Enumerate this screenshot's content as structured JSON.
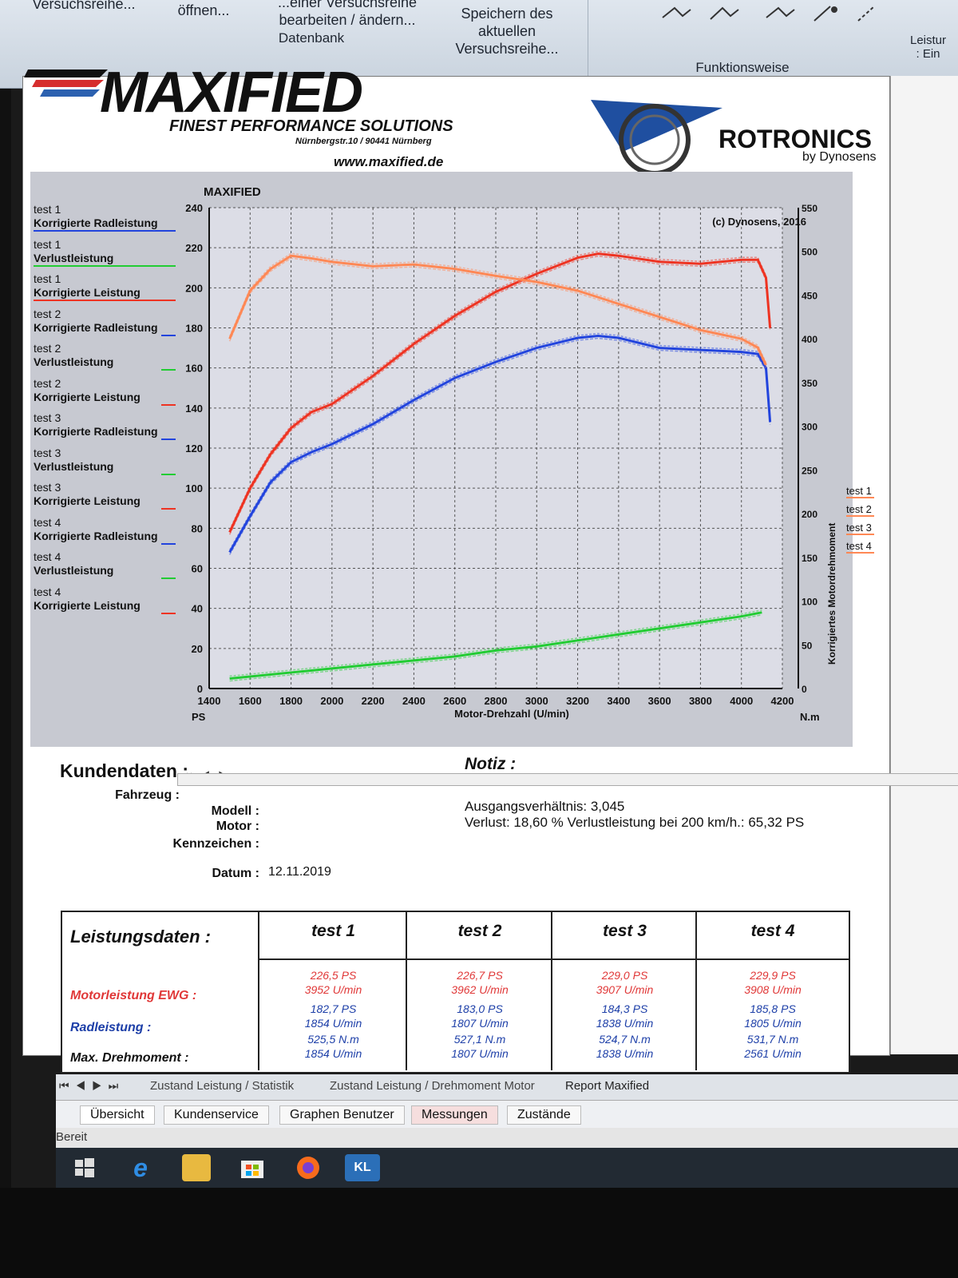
{
  "ribbon": {
    "btn_versuchsreihe": "Versuchsreihe...",
    "btn_oeffnen": "öffnen...",
    "btn_bearbeiten_top": "...einer Versuchsreihe",
    "btn_bearbeiten": "bearbeiten / ändern...",
    "btn_speichern_1": "Speichern des aktuellen",
    "btn_speichern_2": "Versuchsreihe...",
    "group_datenbank": "Datenbank",
    "group_funktionsweise": "Funktionsweise",
    "right_label_1": "Leistur",
    "right_label_2": ": Ein"
  },
  "header": {
    "logo_word": "MAXIFIED",
    "logo_sub": "FINEST PERFORMANCE SOLUTIONS",
    "logo_addr": "Nürnbergstr.10 / 90441 Nürnberg",
    "logo_url": "www.maxified.de",
    "partner_name": "ROTRONICS",
    "partner_by": "by Dynosens"
  },
  "chart_data": {
    "type": "line",
    "title": "MAXIFIED",
    "copyright": "(c) Dynosens, 2016",
    "xlabel": "Motor-Drehzahl (U/min)",
    "ylabel_left_unit": "PS",
    "ylabel_right": "Korrigiertes Motordrehmoment",
    "ylabel_right_unit": "N.m",
    "xlim": [
      1400,
      4200
    ],
    "ylim": [
      0,
      240
    ],
    "y2lim": [
      0,
      550
    ],
    "x_ticks": [
      1400,
      1600,
      1800,
      2000,
      2200,
      2400,
      2600,
      2800,
      3000,
      3200,
      3400,
      3600,
      3800,
      4000,
      4200
    ],
    "y_ticks": [
      0,
      20,
      40,
      60,
      80,
      100,
      120,
      140,
      160,
      180,
      200,
      220,
      240
    ],
    "y2_ticks": [
      0,
      50,
      100,
      150,
      200,
      250,
      300,
      350,
      400,
      450,
      500,
      550
    ],
    "grid": true,
    "series": [
      {
        "name": "Korrigierte Leistung",
        "color": "#ee3322",
        "x": [
          1500,
          1600,
          1700,
          1800,
          1900,
          2000,
          2200,
          2400,
          2600,
          2800,
          3000,
          3200,
          3300,
          3400,
          3600,
          3800,
          4000,
          4080,
          4120,
          4140
        ],
        "values": [
          78,
          100,
          117,
          130,
          138,
          142,
          156,
          172,
          186,
          198,
          207,
          215,
          217,
          216,
          213,
          212,
          214,
          214,
          205,
          180
        ]
      },
      {
        "name": "Korrigierte Radleistung",
        "color": "#2244dd",
        "x": [
          1500,
          1600,
          1700,
          1800,
          1900,
          2000,
          2200,
          2400,
          2600,
          2800,
          3000,
          3200,
          3300,
          3400,
          3600,
          3800,
          4000,
          4080,
          4120,
          4140
        ],
        "values": [
          68,
          86,
          103,
          113,
          118,
          122,
          132,
          144,
          155,
          163,
          170,
          175,
          176,
          175,
          170,
          169,
          168,
          167,
          160,
          133
        ]
      },
      {
        "name": "Korrigiertes Motordrehmoment",
        "color": "#ff8855",
        "axis": "right",
        "x": [
          1500,
          1600,
          1700,
          1800,
          1900,
          2000,
          2200,
          2400,
          2600,
          2800,
          3000,
          3200,
          3400,
          3600,
          3800,
          4000,
          4080,
          4120
        ],
        "values": [
          400,
          455,
          480,
          495,
          492,
          488,
          483,
          485,
          480,
          472,
          465,
          455,
          440,
          425,
          410,
          400,
          390,
          370
        ]
      },
      {
        "name": "Verlustleistung",
        "color": "#22cc33",
        "x": [
          1500,
          1600,
          1800,
          2000,
          2200,
          2400,
          2600,
          2800,
          3000,
          3200,
          3400,
          3600,
          3800,
          4000,
          4100
        ],
        "values": [
          5,
          6,
          8,
          10,
          12,
          14,
          16,
          19,
          21,
          24,
          27,
          30,
          33,
          36,
          38
        ]
      }
    ]
  },
  "legend_left": [
    {
      "t": "test 1",
      "n": "Korrigierte Radleistung",
      "color": "#2244dd",
      "style": "solid"
    },
    {
      "t": "test 1",
      "n": "Verlustleistung",
      "color": "#22cc33",
      "style": "solid"
    },
    {
      "t": "test 1",
      "n": "Korrigierte Leistung",
      "color": "#ee3322",
      "style": "solid"
    },
    {
      "t": "test 2",
      "n": "Korrigierte Radleistung",
      "color": "#2244dd",
      "style": "dashed"
    },
    {
      "t": "test 2",
      "n": "Verlustleistung",
      "color": "#22cc33",
      "style": "dashed"
    },
    {
      "t": "test 2",
      "n": "Korrigierte Leistung",
      "color": "#ee3322",
      "style": "dashed"
    },
    {
      "t": "test 3",
      "n": "Korrigierte Radleistung",
      "color": "#2244dd",
      "style": "dashed"
    },
    {
      "t": "test 3",
      "n": "Verlustleistung",
      "color": "#22cc33",
      "style": "dashed"
    },
    {
      "t": "test 3",
      "n": "Korrigierte Leistung",
      "color": "#ee3322",
      "style": "dashed"
    },
    {
      "t": "test 4",
      "n": "Korrigierte Radleistung",
      "color": "#2244dd",
      "style": "dashed"
    },
    {
      "t": "test 4",
      "n": "Verlustleistung",
      "color": "#22cc33",
      "style": "dashed"
    },
    {
      "t": "test 4",
      "n": "Korrigierte Leistung",
      "color": "#ee3322",
      "style": "dashed"
    }
  ],
  "legend_right": [
    {
      "t": "test 1",
      "color": "#ff8855"
    },
    {
      "t": "test 2",
      "color": "#ff8855"
    },
    {
      "t": "test 3",
      "color": "#ff8855"
    },
    {
      "t": "test 4",
      "color": "#ff8855"
    }
  ],
  "kunden": {
    "title": "Kundendaten :",
    "fahrzeug_label": "Fahrzeug :",
    "modell_label": "Modell :",
    "motor_label": "Motor :",
    "kennzeichen_label": "Kennzeichen :",
    "datum_label": "Datum :",
    "datum_value": "12.11.2019"
  },
  "notiz": {
    "title": "Notiz :",
    "line1": "Ausgangsverhältnis: 3,045",
    "line2": "Verlust: 18,60 %  Verlustleistung bei 200 km/h.: 65,32 PS"
  },
  "perf": {
    "title": "Leistungsdaten :",
    "row_motor": "Motorleistung EWG :",
    "row_rad": "Radleistung :",
    "row_dreh": "Max. Drehmoment :",
    "cols": [
      {
        "name": "test 1",
        "motor_ps": "226,5 PS",
        "motor_rpm": "3952 U/min",
        "rad_ps": "182,7 PS",
        "rad_rpm": "1854 U/min",
        "dreh_nm": "525,5 N.m",
        "dreh_rpm": "1854 U/min"
      },
      {
        "name": "test 2",
        "motor_ps": "226,7 PS",
        "motor_rpm": "3962 U/min",
        "rad_ps": "183,0 PS",
        "rad_rpm": "1807 U/min",
        "dreh_nm": "527,1 N.m",
        "dreh_rpm": "1807 U/min"
      },
      {
        "name": "test 3",
        "motor_ps": "229,0 PS",
        "motor_rpm": "3907 U/min",
        "rad_ps": "184,3 PS",
        "rad_rpm": "1838 U/min",
        "dreh_nm": "524,7 N.m",
        "dreh_rpm": "1838 U/min"
      },
      {
        "name": "test 4",
        "motor_ps": "229,9 PS",
        "motor_rpm": "3908 U/min",
        "rad_ps": "185,8 PS",
        "rad_rpm": "1805 U/min",
        "dreh_nm": "531,7 N.m",
        "dreh_rpm": "2561 U/min"
      }
    ]
  },
  "sheet_tabs": [
    "Zustand Leistung / Statistik",
    "Zustand Leistung / Drehmoment Motor",
    "Report Maxified"
  ],
  "main_tabs": [
    "Übersicht",
    "Kundenservice",
    "Graphen Benutzer",
    "Messungen",
    "Zustände"
  ],
  "status": {
    "text": "Bereit"
  },
  "taskbar": {
    "kl_label": "KL"
  }
}
